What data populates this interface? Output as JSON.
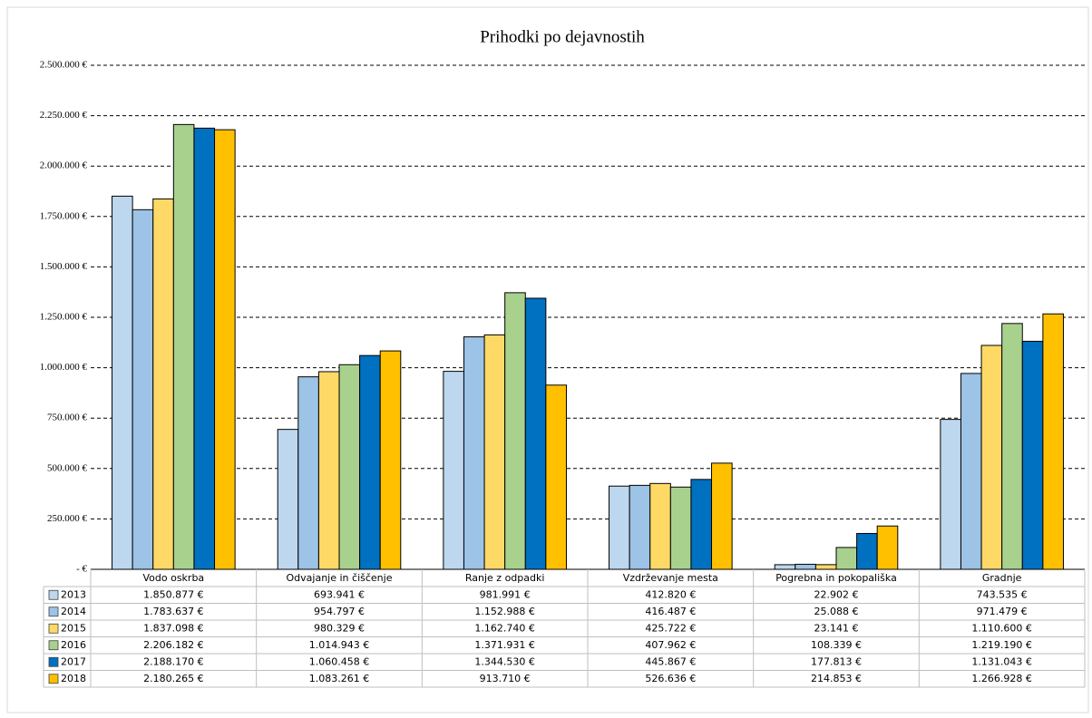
{
  "chart_data": {
    "type": "bar",
    "title": "Prihodki po dejavnostih",
    "categories": [
      "Vodo oskrba",
      "Odvajanje in čiščenje",
      "Ranje z odpadki",
      "Vzdrževanje mesta",
      "Pogrebna in pokopališka",
      "Gradnje"
    ],
    "series": [
      {
        "name": "2013",
        "color": "#bdd7ee",
        "values": [
          1850877,
          693941,
          981991,
          412820,
          22902,
          743535
        ],
        "value_labels": [
          "1.850.877 €",
          "693.941 €",
          "981.991 €",
          "412.820 €",
          "22.902 €",
          "743.535 €"
        ]
      },
      {
        "name": "2014",
        "color": "#9dc3e6",
        "values": [
          1783637,
          954797,
          1152988,
          416487,
          25088,
          971479
        ],
        "value_labels": [
          "1.783.637 €",
          "954.797 €",
          "1.152.988 €",
          "416.487 €",
          "25.088 €",
          "971.479 €"
        ]
      },
      {
        "name": "2015",
        "color": "#ffd966",
        "values": [
          1837098,
          980329,
          1162740,
          425722,
          23141,
          1110600
        ],
        "value_labels": [
          "1.837.098 €",
          "980.329 €",
          "1.162.740 €",
          "425.722 €",
          "23.141 €",
          "1.110.600 €"
        ]
      },
      {
        "name": "2016",
        "color": "#a9d18e",
        "values": [
          2206182,
          1014943,
          1371931,
          407962,
          108339,
          1219190
        ],
        "value_labels": [
          "2.206.182 €",
          "1.014.943 €",
          "1.371.931 €",
          "407.962 €",
          "108.339 €",
          "1.219.190 €"
        ]
      },
      {
        "name": "2017",
        "color": "#0070c0",
        "values": [
          2188170,
          1060458,
          1344530,
          445867,
          177813,
          1131043
        ],
        "value_labels": [
          "2.188.170 €",
          "1.060.458 €",
          "1.344.530 €",
          "445.867 €",
          "177.813 €",
          "1.131.043 €"
        ]
      },
      {
        "name": "2018",
        "color": "#ffc000",
        "values": [
          2180265,
          1083261,
          913710,
          526636,
          214853,
          1266928
        ],
        "value_labels": [
          "2.180.265 €",
          "1.083.261 €",
          "913.710 €",
          "526.636 €",
          "214.853 €",
          "1.266.928 €"
        ]
      }
    ],
    "ylim": [
      0,
      2500000
    ],
    "yticks": [
      {
        "value": 0,
        "label": "-  €"
      },
      {
        "value": 250000,
        "label": "250.000 €"
      },
      {
        "value": 500000,
        "label": "500.000 €"
      },
      {
        "value": 750000,
        "label": "750.000 €"
      },
      {
        "value": 1000000,
        "label": "1.000.000 €"
      },
      {
        "value": 1250000,
        "label": "1.250.000 €"
      },
      {
        "value": 1500000,
        "label": "1.500.000 €"
      },
      {
        "value": 1750000,
        "label": "1.750.000 €"
      },
      {
        "value": 2000000,
        "label": "2.000.000 €"
      },
      {
        "value": 2250000,
        "label": "2.250.000 €"
      },
      {
        "value": 2500000,
        "label": "2.500.000 €"
      }
    ],
    "grid": true
  }
}
